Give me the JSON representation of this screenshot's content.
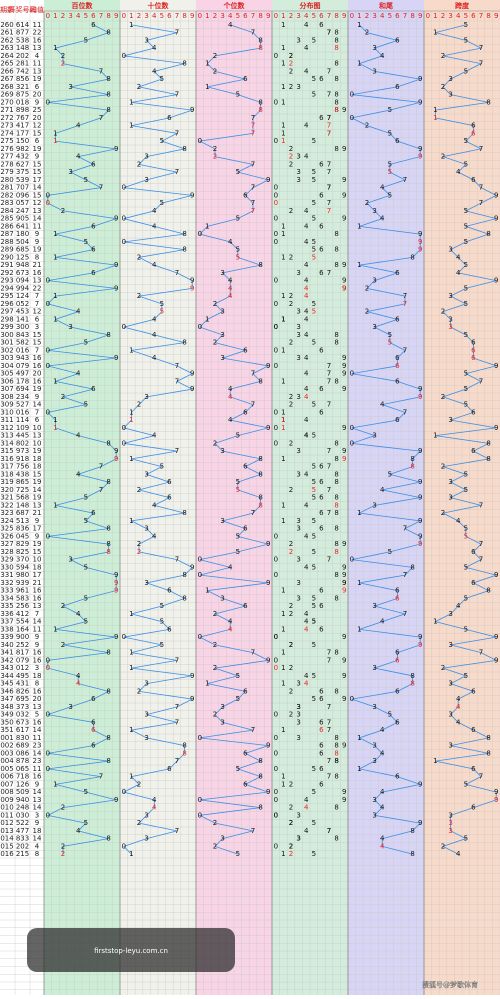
{
  "chart_data": {
    "type": "lottery-trend",
    "columns": [
      "期数",
      "开奖号码",
      "和值"
    ],
    "sections": [
      "百位数",
      "十位数",
      "个位数",
      "分布图",
      "和尾",
      "跨度"
    ],
    "digits": [
      0,
      1,
      2,
      3,
      4,
      5,
      6,
      7,
      8,
      9
    ],
    "line_color": "#3a8ee6",
    "rows": [
      [
        "260",
        "614",
        11,
        6,
        1,
        4,
        1,
        5
      ],
      [
        "261",
        "877",
        22,
        8,
        7,
        7,
        2,
        1
      ],
      [
        "262",
        "538",
        16,
        5,
        3,
        8,
        6,
        5
      ],
      [
        "263",
        "148",
        13,
        1,
        4,
        8,
        3,
        7
      ],
      [
        "264",
        "202",
        4,
        2,
        0,
        2,
        4,
        2
      ],
      [
        "265",
        "281",
        11,
        2,
        8,
        1,
        1,
        7
      ],
      [
        "266",
        "742",
        13,
        7,
        4,
        2,
        3,
        5
      ],
      [
        "267",
        "856",
        19,
        8,
        5,
        6,
        9,
        3
      ],
      [
        "268",
        "321",
        6,
        3,
        2,
        1,
        6,
        2
      ],
      [
        "269",
        "875",
        20,
        8,
        7,
        5,
        0,
        3
      ],
      [
        "270",
        "018",
        9,
        0,
        1,
        8,
        9,
        8
      ],
      [
        "271",
        "898",
        25,
        8,
        9,
        8,
        5,
        1
      ],
      [
        "272",
        "767",
        20,
        7,
        6,
        7,
        0,
        1
      ],
      [
        "273",
        "417",
        12,
        4,
        1,
        7,
        2,
        6
      ],
      [
        "274",
        "177",
        15,
        1,
        7,
        7,
        5,
        6
      ],
      [
        "275",
        "150",
        6,
        1,
        5,
        0,
        6,
        5
      ],
      [
        "276",
        "982",
        19,
        9,
        8,
        2,
        9,
        7
      ],
      [
        "277",
        "432",
        9,
        4,
        3,
        2,
        9,
        2
      ],
      [
        "278",
        "627",
        15,
        6,
        2,
        7,
        5,
        5
      ],
      [
        "279",
        "375",
        15,
        3,
        7,
        5,
        5,
        4
      ],
      [
        "280",
        "539",
        17,
        5,
        3,
        9,
        7,
        6
      ],
      [
        "281",
        "707",
        14,
        7,
        0,
        7,
        4,
        7
      ],
      [
        "282",
        "096",
        15,
        0,
        9,
        6,
        5,
        9
      ],
      [
        "283",
        "057",
        12,
        0,
        5,
        7,
        2,
        7
      ],
      [
        "284",
        "247",
        13,
        2,
        4,
        7,
        3,
        5
      ],
      [
        "285",
        "905",
        14,
        9,
        0,
        5,
        4,
        9
      ],
      [
        "286",
        "641",
        11,
        6,
        4,
        1,
        1,
        5
      ],
      [
        "287",
        "180",
        9,
        1,
        8,
        0,
        9,
        8
      ],
      [
        "288",
        "504",
        9,
        5,
        0,
        4,
        9,
        5
      ],
      [
        "289",
        "685",
        19,
        6,
        8,
        5,
        9,
        3
      ],
      [
        "290",
        "125",
        8,
        1,
        2,
        5,
        8,
        4
      ],
      [
        "291",
        "948",
        21,
        9,
        4,
        8,
        1,
        5
      ],
      [
        "292",
        "673",
        16,
        6,
        7,
        3,
        6,
        4
      ],
      [
        "293",
        "094",
        13,
        0,
        9,
        4,
        3,
        9
      ],
      [
        "294",
        "994",
        22,
        9,
        9,
        4,
        2,
        5
      ],
      [
        "295",
        "124",
        7,
        1,
        2,
        4,
        7,
        3
      ],
      [
        "296",
        "052",
        7,
        0,
        5,
        2,
        7,
        5
      ],
      [
        "297",
        "453",
        12,
        4,
        5,
        3,
        2,
        2
      ],
      [
        "298",
        "141",
        6,
        1,
        4,
        1,
        6,
        3
      ],
      [
        "299",
        "300",
        3,
        3,
        0,
        0,
        3,
        3
      ],
      [
        "300",
        "843",
        15,
        8,
        4,
        3,
        5,
        5
      ],
      [
        "301",
        "582",
        15,
        5,
        8,
        2,
        5,
        6
      ],
      [
        "302",
        "016",
        7,
        0,
        1,
        6,
        7,
        6
      ],
      [
        "303",
        "943",
        16,
        9,
        4,
        3,
        6,
        6
      ],
      [
        "304",
        "079",
        16,
        0,
        7,
        9,
        6,
        9
      ],
      [
        "305",
        "497",
        20,
        4,
        9,
        7,
        0,
        5
      ],
      [
        "306",
        "178",
        16,
        1,
        7,
        8,
        6,
        7
      ],
      [
        "307",
        "694",
        19,
        6,
        9,
        4,
        9,
        5
      ],
      [
        "308",
        "234",
        9,
        2,
        3,
        4,
        9,
        2
      ],
      [
        "309",
        "527",
        14,
        5,
        2,
        7,
        4,
        5
      ],
      [
        "310",
        "016",
        7,
        0,
        1,
        6,
        7,
        6
      ],
      [
        "311",
        "114",
        6,
        1,
        1,
        4,
        6,
        3
      ],
      [
        "312",
        "109",
        10,
        1,
        0,
        9,
        0,
        9
      ],
      [
        "313",
        "445",
        13,
        4,
        4,
        5,
        3,
        1
      ],
      [
        "314",
        "802",
        10,
        8,
        0,
        2,
        0,
        8
      ],
      [
        "315",
        "973",
        19,
        9,
        7,
        3,
        9,
        6
      ],
      [
        "316",
        "918",
        18,
        9,
        1,
        8,
        8,
        8
      ],
      [
        "317",
        "756",
        18,
        7,
        5,
        6,
        8,
        2
      ],
      [
        "318",
        "438",
        15,
        4,
        3,
        8,
        5,
        5
      ],
      [
        "319",
        "865",
        19,
        8,
        6,
        5,
        9,
        3
      ],
      [
        "320",
        "725",
        14,
        7,
        2,
        5,
        4,
        5
      ],
      [
        "321",
        "568",
        19,
        5,
        6,
        8,
        9,
        3
      ],
      [
        "322",
        "148",
        13,
        1,
        4,
        8,
        3,
        7
      ],
      [
        "323",
        "687",
        21,
        6,
        8,
        7,
        1,
        2
      ],
      [
        "324",
        "513",
        9,
        5,
        1,
        3,
        9,
        4
      ],
      [
        "325",
        "836",
        17,
        8,
        3,
        6,
        7,
        5
      ],
      [
        "326",
        "045",
        9,
        0,
        4,
        5,
        9,
        5
      ],
      [
        "327",
        "829",
        19,
        8,
        2,
        9,
        9,
        7
      ],
      [
        "328",
        "825",
        15,
        8,
        2,
        5,
        5,
        6
      ],
      [
        "329",
        "370",
        10,
        3,
        7,
        0,
        0,
        7
      ],
      [
        "330",
        "594",
        18,
        5,
        9,
        4,
        8,
        5
      ],
      [
        "331",
        "980",
        17,
        9,
        8,
        0,
        7,
        9
      ],
      [
        "332",
        "939",
        21,
        9,
        3,
        9,
        1,
        6
      ],
      [
        "333",
        "961",
        16,
        9,
        6,
        1,
        6,
        8
      ],
      [
        "334",
        "583",
        16,
        5,
        8,
        3,
        6,
        5
      ],
      [
        "335",
        "256",
        13,
        2,
        5,
        6,
        3,
        4
      ],
      [
        "336",
        "412",
        7,
        4,
        1,
        2,
        7,
        3
      ],
      [
        "337",
        "554",
        14,
        5,
        5,
        4,
        4,
        1
      ],
      [
        "338",
        "164",
        11,
        1,
        6,
        4,
        1,
        5
      ],
      [
        "339",
        "900",
        9,
        9,
        0,
        0,
        9,
        9
      ],
      [
        "340",
        "252",
        9,
        2,
        5,
        2,
        9,
        3
      ],
      [
        "341",
        "817",
        16,
        8,
        1,
        7,
        6,
        7
      ],
      [
        "342",
        "079",
        16,
        0,
        7,
        9,
        6,
        9
      ],
      [
        "343",
        "012",
        3,
        0,
        1,
        2,
        3,
        2
      ],
      [
        "344",
        "495",
        18,
        4,
        9,
        5,
        8,
        5
      ],
      [
        "345",
        "431",
        8,
        4,
        3,
        1,
        8,
        3
      ],
      [
        "346",
        "826",
        16,
        8,
        2,
        6,
        6,
        6
      ],
      [
        "347",
        "695",
        20,
        6,
        9,
        5,
        0,
        4
      ],
      [
        "348",
        "373",
        13,
        3,
        7,
        3,
        3,
        4
      ],
      [
        "349",
        "032",
        5,
        0,
        3,
        2,
        5,
        3
      ],
      [
        "350",
        "673",
        16,
        6,
        7,
        3,
        6,
        4
      ],
      [
        "351",
        "617",
        14,
        6,
        1,
        7,
        4,
        6
      ],
      [
        "001",
        "830",
        11,
        8,
        3,
        0,
        1,
        8
      ],
      [
        "002",
        "689",
        23,
        6,
        8,
        9,
        3,
        3
      ],
      [
        "003",
        "086",
        14,
        0,
        8,
        6,
        4,
        8
      ],
      [
        "004",
        "878",
        23,
        8,
        7,
        8,
        3,
        1
      ],
      [
        "005",
        "065",
        11,
        0,
        6,
        5,
        1,
        6
      ],
      [
        "006",
        "718",
        16,
        7,
        1,
        8,
        6,
        7
      ],
      [
        "007",
        "126",
        9,
        1,
        2,
        6,
        9,
        5
      ],
      [
        "008",
        "509",
        14,
        5,
        0,
        9,
        4,
        9
      ],
      [
        "009",
        "940",
        13,
        9,
        4,
        0,
        3,
        9
      ],
      [
        "010",
        "248",
        14,
        2,
        4,
        8,
        4,
        6
      ],
      [
        "011",
        "030",
        3,
        0,
        3,
        0,
        3,
        3
      ],
      [
        "012",
        "522",
        9,
        5,
        2,
        2,
        9,
        3
      ],
      [
        "013",
        "477",
        18,
        4,
        7,
        7,
        8,
        3
      ],
      [
        "014",
        "833",
        14,
        8,
        3,
        3,
        4,
        5
      ],
      [
        "015",
        "202",
        4,
        2,
        0,
        2,
        4,
        2
      ],
      [
        "016",
        "215",
        8,
        2,
        1,
        5,
        8,
        4
      ]
    ],
    "watermark": "firststop-leyu.com.cn",
    "credit": "搜狐号@梦歌体育"
  }
}
